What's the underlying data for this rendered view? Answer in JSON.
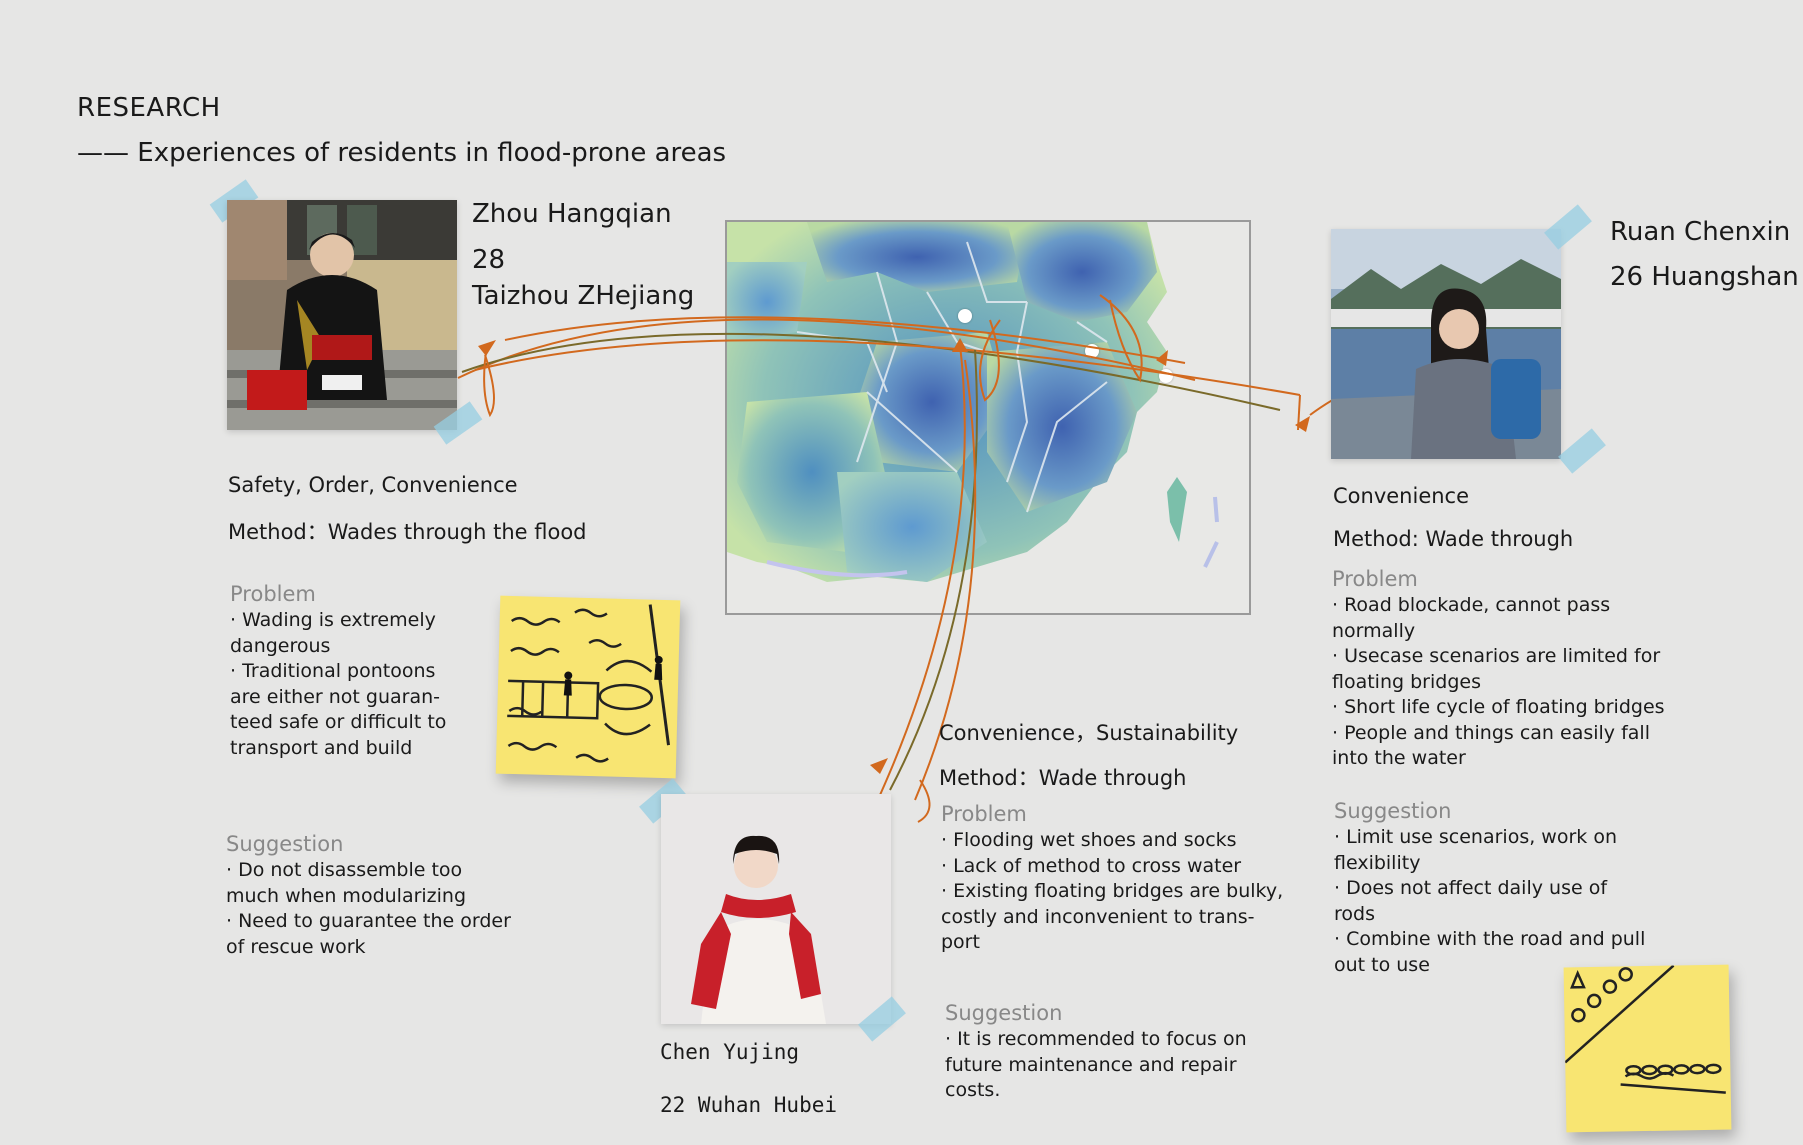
{
  "header": {
    "title": "RESEARCH",
    "subtitle": "—— Experiences of residents in flood-prone areas"
  },
  "persons": [
    {
      "name": "Zhou Hangqian",
      "age": "28",
      "location": "Taizhou ZHejiang",
      "keywords": "Safety, Order, Convenience",
      "method": "Method：Wades through the flood",
      "problem_label": "Problem",
      "problems": [
        "· Wading is extremely",
        "dangerous",
        "· Traditional pontoons",
        "are either not guaran-",
        "teed safe or difficult to",
        "transport and build"
      ],
      "suggestion_label": "Suggestion",
      "suggestions": [
        "· Do not disassemble too",
        "much when modularizing",
        "· Need to guarantee the order",
        "of rescue work"
      ]
    },
    {
      "name": "Ruan Chenxin",
      "age_location": "26 Huangshan",
      "keywords": "Convenience",
      "method": "Method: Wade through",
      "problem_label": "Problem",
      "problems": [
        "· Road blockade, cannot pass",
        "normally",
        "· Usecase scenarios are limited for",
        "floating bridges",
        "· Short life cycle of floating bridges",
        "· People and things can easily fall",
        "into the water"
      ],
      "suggestion_label": "Suggestion",
      "suggestions": [
        "· Limit use scenarios, work on",
        "flexibility",
        "· Does not affect daily use of",
        "rods",
        "· Combine with the road and pull",
        "out to use"
      ]
    },
    {
      "name": "Chen Yujing",
      "age_location": "22 Wuhan Hubei",
      "keywords": "Convenience，Sustainability",
      "method": "Method：Wade through",
      "problem_label": "Problem",
      "problems": [
        "· Flooding wet shoes and socks",
        "· Lack of method to cross water",
        "· Existing floating bridges are bulky,",
        "costly and inconvenient to trans-",
        "port"
      ],
      "suggestion_label": "Suggestion",
      "suggestions": [
        "· It is recommended to focus on",
        "future maintenance and repair",
        "costs."
      ]
    }
  ],
  "colors": {
    "background": "#e6e6e5",
    "arrow_orange": "#d2691e",
    "arrow_olive": "#7a6a2a",
    "sticky_note": "#f8e572",
    "tape": "#96cde1",
    "map_blue": "#4a70b8",
    "map_green": "#b8d8a0"
  },
  "icons": [
    "flood-sketch-icon",
    "bridge-sketch-icon",
    "person-photo-icon"
  ]
}
